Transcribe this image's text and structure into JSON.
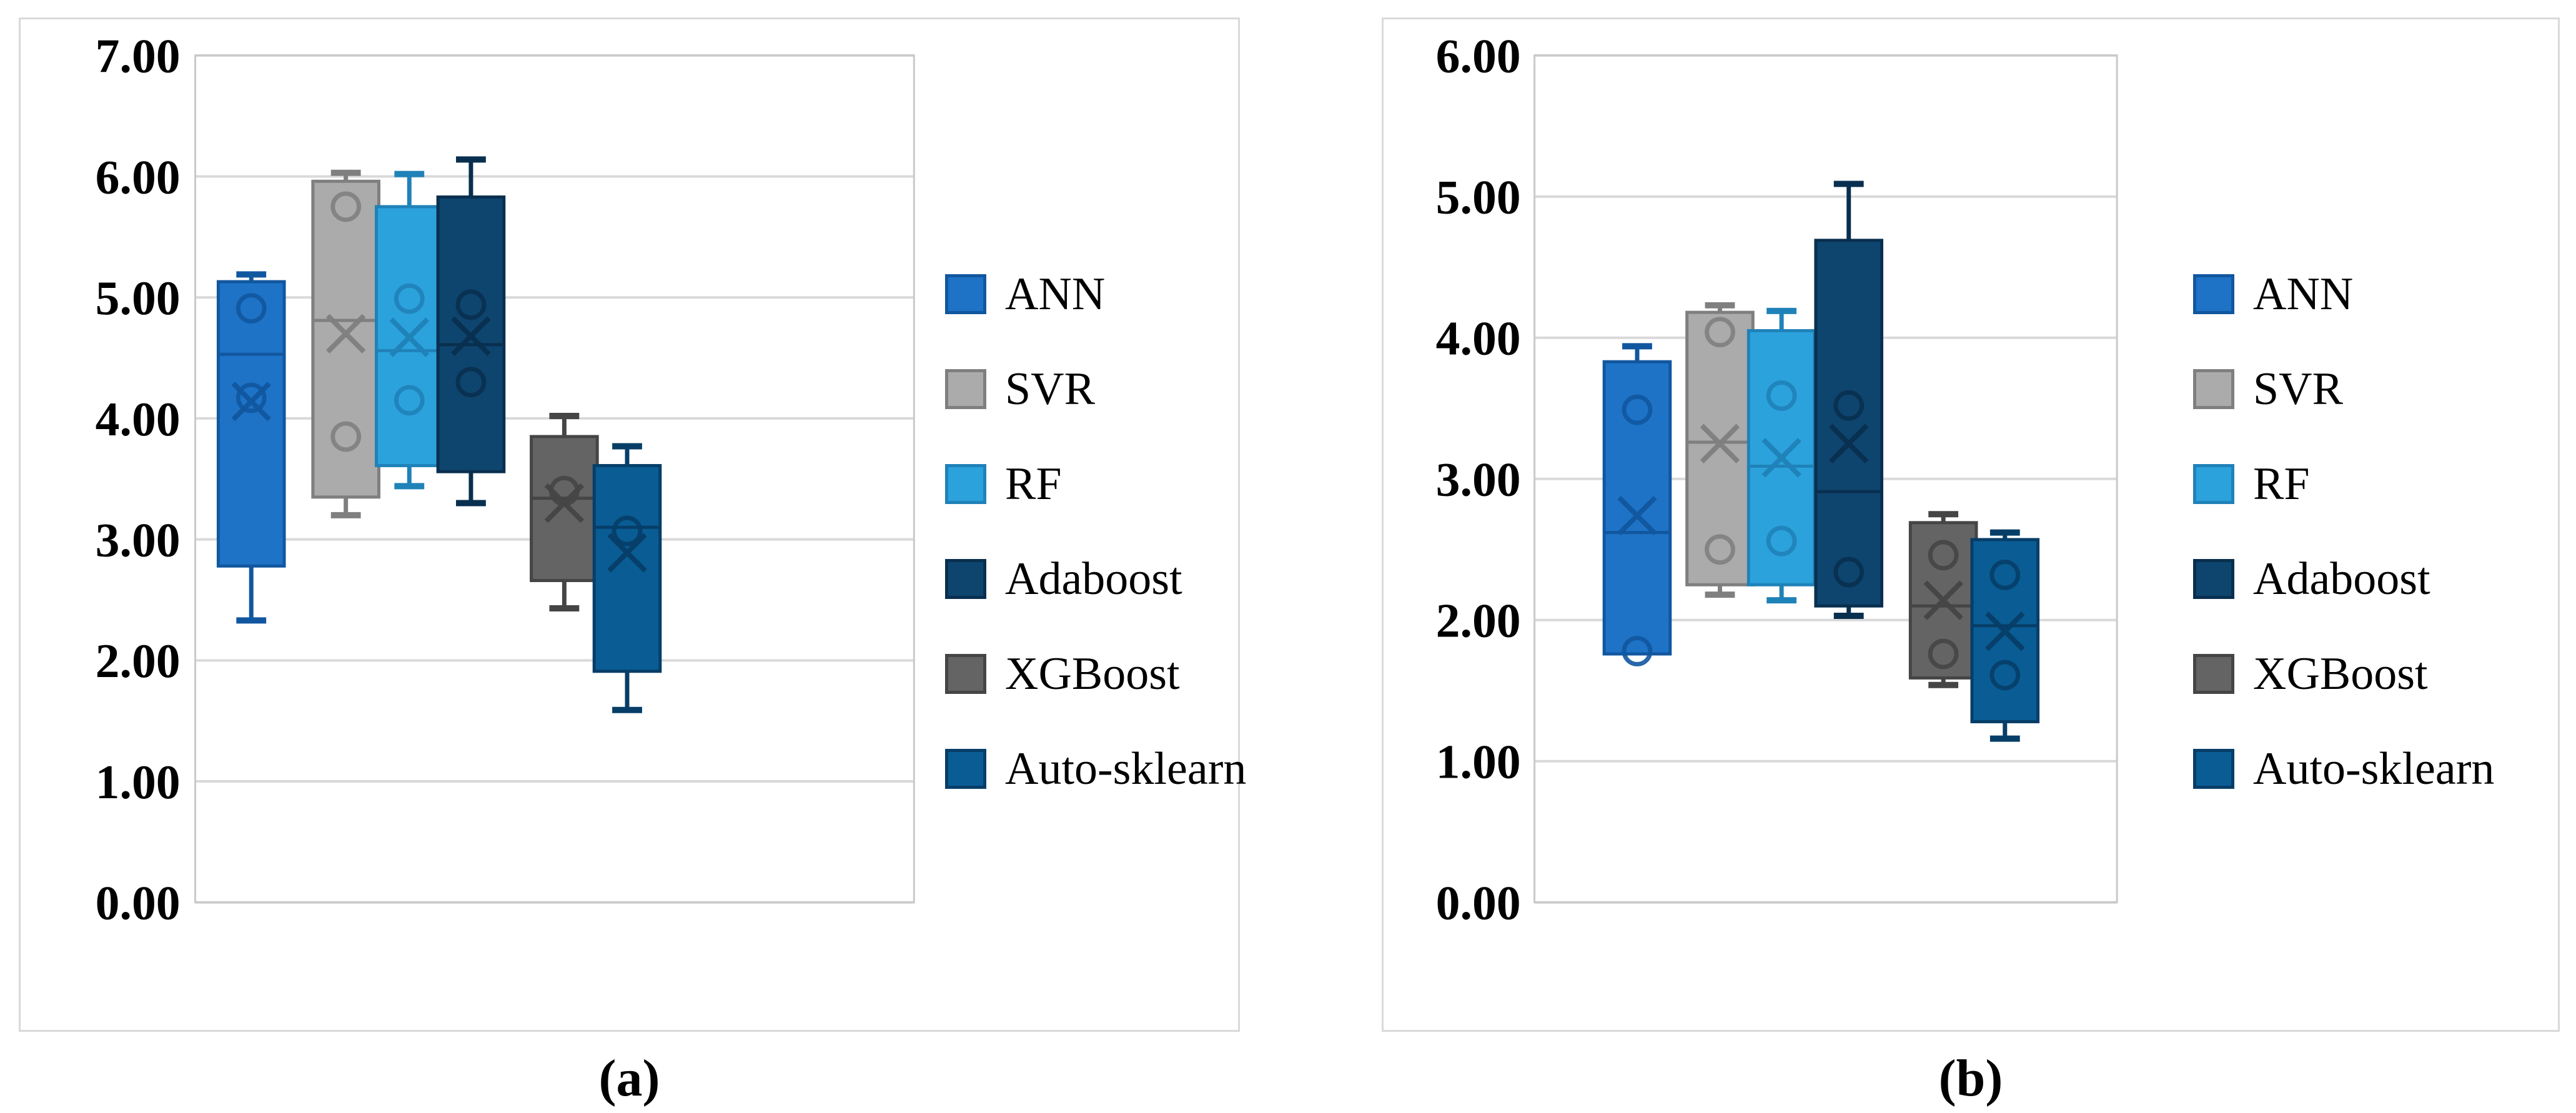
{
  "figure": {
    "kind": "boxplot-comparison-figure",
    "colors": {
      "background": "#FFFFFF",
      "panel_border": "#D9D9D9",
      "plot_border": "#C9C9C9",
      "gridline": "#D9D9D9",
      "text": "#000000"
    }
  },
  "legend": {
    "position": "right",
    "items": [
      {
        "label": "ANN",
        "fill": "#1E73C6",
        "stroke": "#1157A0"
      },
      {
        "label": "SVR",
        "fill": "#ABABAB",
        "stroke": "#7F7F7F"
      },
      {
        "label": "RF",
        "fill": "#2CA2DC",
        "stroke": "#1F82B8"
      },
      {
        "label": "Adaboost",
        "fill": "#0E456F",
        "stroke": "#092F4F"
      },
      {
        "label": "XGBoost",
        "fill": "#646464",
        "stroke": "#454545"
      },
      {
        "label": "Auto-sklearn",
        "fill": "#0A5C94",
        "stroke": "#063E68"
      }
    ]
  },
  "chart_data": [
    {
      "type": "box",
      "caption": "(a)",
      "grid": true,
      "legend_position": "right",
      "ylim": [
        0,
        7
      ],
      "ytick_step": 1,
      "ytick_labels": [
        "7.00",
        "6.00",
        "5.00",
        "4.00",
        "3.00",
        "2.00",
        "1.00",
        "0.00"
      ],
      "categories": [
        "ANN",
        "SVR",
        "RF",
        "Adaboost",
        "XGBoost",
        "Auto-sklearn"
      ],
      "series": [
        {
          "name": "ANN",
          "whisker_low": 2.33,
          "q1": 2.78,
          "median": 4.53,
          "mean": 4.14,
          "q3": 5.13,
          "whisker_high": 5.19,
          "outliers": [
            4.91,
            4.17
          ]
        },
        {
          "name": "SVR",
          "whisker_low": 3.2,
          "q1": 3.35,
          "median": 4.81,
          "mean": 4.7,
          "q3": 5.96,
          "whisker_high": 6.03,
          "outliers": [
            5.75,
            3.85
          ]
        },
        {
          "name": "RF",
          "whisker_low": 3.44,
          "q1": 3.61,
          "median": 4.56,
          "mean": 4.67,
          "q3": 5.75,
          "whisker_high": 6.02,
          "outliers": [
            4.99,
            4.15
          ]
        },
        {
          "name": "Adaboost",
          "whisker_low": 3.3,
          "q1": 3.56,
          "median": 4.61,
          "mean": 4.68,
          "q3": 5.83,
          "whisker_high": 6.14,
          "outliers": [
            4.94,
            4.3
          ]
        },
        {
          "name": "XGBoost",
          "whisker_low": 2.43,
          "q1": 2.66,
          "median": 3.34,
          "mean": 3.3,
          "q3": 3.85,
          "whisker_high": 4.02,
          "outliers": [
            3.4
          ]
        },
        {
          "name": "Auto-sklearn",
          "whisker_low": 1.59,
          "q1": 1.91,
          "median": 3.1,
          "mean": 2.89,
          "q3": 3.61,
          "whisker_high": 3.77,
          "outliers": [
            3.07
          ]
        }
      ]
    },
    {
      "type": "box",
      "caption": "(b)",
      "grid": true,
      "legend_position": "right",
      "ylim": [
        0,
        6
      ],
      "ytick_step": 1,
      "ytick_labels": [
        "6.00",
        "5.00",
        "4.00",
        "3.00",
        "2.00",
        "1.00",
        "0.00"
      ],
      "categories": [
        "ANN",
        "SVR",
        "RF",
        "Adaboost",
        "XGBoost",
        "Auto-sklearn"
      ],
      "series": [
        {
          "name": "ANN",
          "whisker_low": 1.76,
          "q1": 1.76,
          "median": 2.62,
          "mean": 2.74,
          "q3": 3.83,
          "whisker_high": 3.94,
          "outliers": [
            3.49,
            1.78
          ]
        },
        {
          "name": "SVR",
          "whisker_low": 2.18,
          "q1": 2.25,
          "median": 3.26,
          "mean": 3.25,
          "q3": 4.18,
          "whisker_high": 4.23,
          "outliers": [
            4.04,
            2.5
          ]
        },
        {
          "name": "RF",
          "whisker_low": 2.14,
          "q1": 2.25,
          "median": 3.09,
          "mean": 3.15,
          "q3": 4.05,
          "whisker_high": 4.19,
          "outliers": [
            3.59,
            2.56
          ]
        },
        {
          "name": "Adaboost",
          "whisker_low": 2.03,
          "q1": 2.1,
          "median": 2.91,
          "mean": 3.25,
          "q3": 4.69,
          "whisker_high": 5.09,
          "outliers": [
            3.52,
            2.34
          ]
        },
        {
          "name": "XGBoost",
          "whisker_low": 1.54,
          "q1": 1.59,
          "median": 2.1,
          "mean": 2.14,
          "q3": 2.69,
          "whisker_high": 2.75,
          "outliers": [
            2.46,
            1.76
          ]
        },
        {
          "name": "Auto-sklearn",
          "whisker_low": 1.16,
          "q1": 1.28,
          "median": 1.96,
          "mean": 1.92,
          "q3": 2.57,
          "whisker_high": 2.62,
          "outliers": [
            2.32,
            1.61
          ]
        }
      ]
    }
  ]
}
